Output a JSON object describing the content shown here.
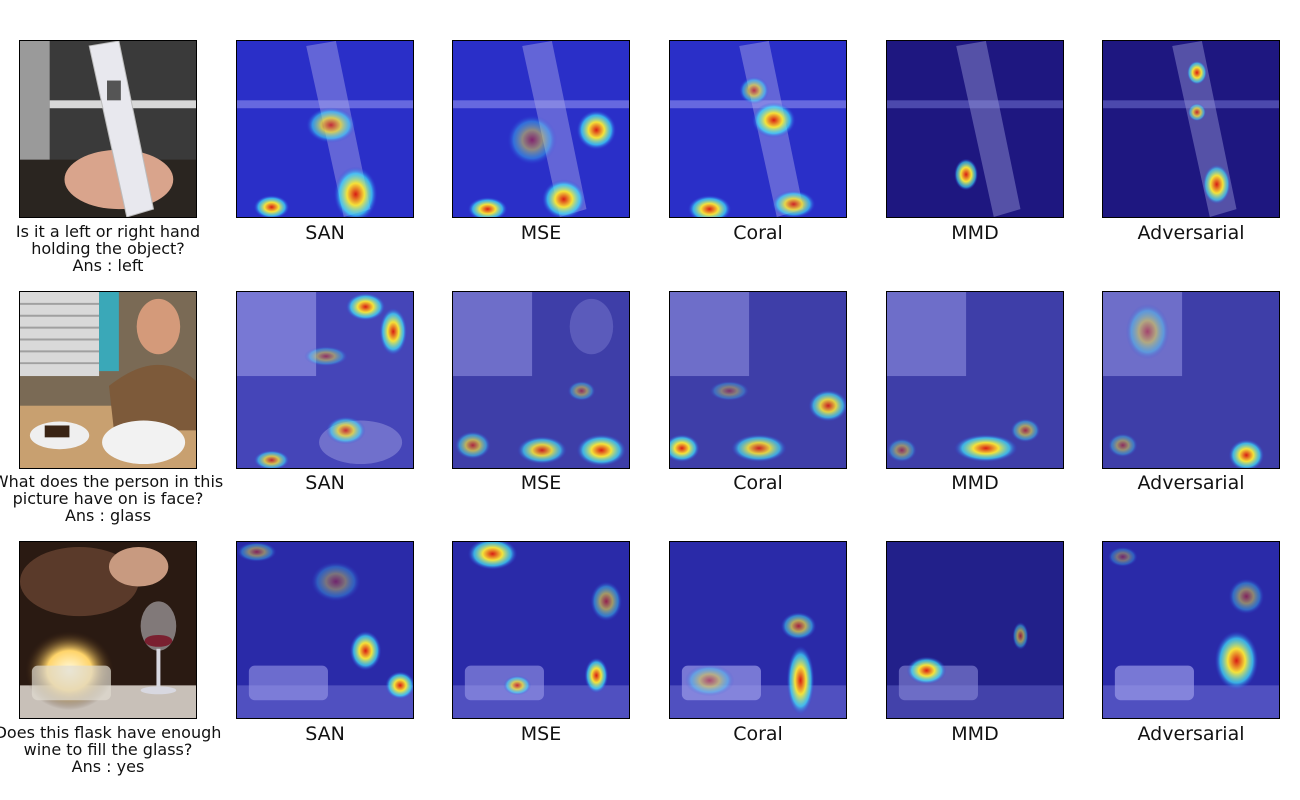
{
  "rows": [
    {
      "question": "Is it a left or right hand holding the object?",
      "answer": "Ans : left",
      "methods": [
        "SAN",
        "MSE",
        "Coral",
        "MMD",
        "Adversarial"
      ]
    },
    {
      "question": "What does the person in this picture have on is face?",
      "answer": "Ans : glass",
      "methods": [
        "SAN",
        "MSE",
        "Coral",
        "MMD",
        "Adversarial"
      ]
    },
    {
      "question": "Does this flask have enough wine to fill the glass?",
      "answer": "Ans : yes",
      "methods": [
        "SAN",
        "MSE",
        "Coral",
        "MMD",
        "Adversarial"
      ]
    }
  ],
  "colors": {
    "overlay_dark": "#1c0f7a",
    "overlay_mid": "#2a3bd9",
    "heat_cyan": "#3fe6ff",
    "heat_yellow": "#f5e23a",
    "heat_red": "#d81c14"
  }
}
